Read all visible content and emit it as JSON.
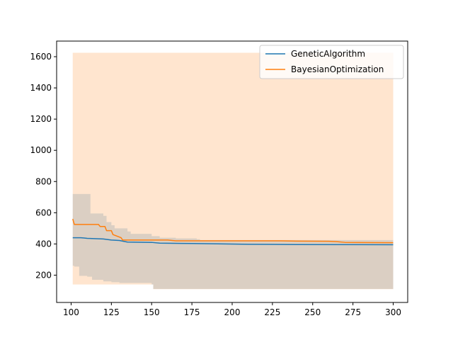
{
  "chart_data": {
    "type": "line",
    "title": "",
    "xlabel": "",
    "ylabel": "",
    "xlim": [
      91,
      309
    ],
    "ylim": [
      25,
      1700
    ],
    "xticks": [
      100,
      125,
      150,
      175,
      200,
      225,
      250,
      275,
      300
    ],
    "yticks": [
      200,
      400,
      600,
      800,
      1000,
      1200,
      1400,
      1600
    ],
    "grid": false,
    "legend_position": "upper right",
    "series": [
      {
        "name": "GeneticAlgorithm",
        "color": "#1f77b4",
        "mean": [
          [
            101,
            440
          ],
          [
            106,
            440
          ],
          [
            108,
            438
          ],
          [
            110,
            436
          ],
          [
            120,
            432
          ],
          [
            125,
            425
          ],
          [
            130,
            422
          ],
          [
            135,
            412
          ],
          [
            150,
            410
          ],
          [
            155,
            405
          ],
          [
            175,
            403
          ],
          [
            195,
            400
          ],
          [
            210,
            398
          ],
          [
            240,
            396
          ],
          [
            300,
            395
          ]
        ],
        "lower": [
          [
            101,
            260
          ],
          [
            102,
            255
          ],
          [
            105,
            195
          ],
          [
            110,
            190
          ],
          [
            113,
            170
          ],
          [
            120,
            160
          ],
          [
            125,
            155
          ],
          [
            130,
            150
          ],
          [
            150,
            140
          ],
          [
            151,
            112
          ],
          [
            300,
            112
          ]
        ],
        "upper": [
          [
            101,
            720
          ],
          [
            110,
            720
          ],
          [
            112,
            595
          ],
          [
            120,
            580
          ],
          [
            122,
            540
          ],
          [
            125,
            520
          ],
          [
            127,
            500
          ],
          [
            135,
            480
          ],
          [
            137,
            465
          ],
          [
            150,
            450
          ],
          [
            155,
            440
          ],
          [
            165,
            435
          ],
          [
            178,
            430
          ],
          [
            180,
            425
          ],
          [
            300,
            420
          ]
        ]
      },
      {
        "name": "BayesianOptimization",
        "color": "#ff7f0e",
        "mean": [
          [
            101,
            560
          ],
          [
            102,
            525
          ],
          [
            110,
            525
          ],
          [
            117,
            525
          ],
          [
            118,
            512
          ],
          [
            121,
            512
          ],
          [
            122,
            485
          ],
          [
            125,
            485
          ],
          [
            126,
            460
          ],
          [
            128,
            452
          ],
          [
            131,
            440
          ],
          [
            132,
            425
          ],
          [
            160,
            425
          ],
          [
            165,
            420
          ],
          [
            230,
            420
          ],
          [
            240,
            418
          ],
          [
            260,
            417
          ],
          [
            265,
            415
          ],
          [
            270,
            410
          ],
          [
            300,
            408
          ]
        ],
        "lower": [
          [
            101,
            140
          ],
          [
            150,
            140
          ],
          [
            151,
            110
          ],
          [
            252,
            110
          ],
          [
            253,
            110
          ],
          [
            300,
            110
          ]
        ],
        "upper": [
          [
            101,
            1625
          ],
          [
            300,
            1625
          ]
        ]
      }
    ]
  }
}
